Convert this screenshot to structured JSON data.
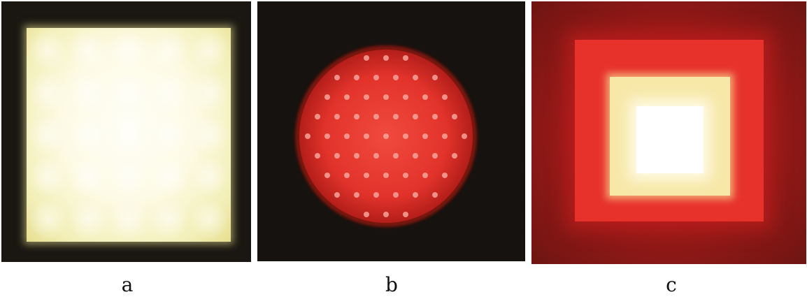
{
  "panels": [
    {
      "caption": "a",
      "description_color": "#fdfbe6"
    },
    {
      "caption": "b",
      "description_color": "#e8362e"
    },
    {
      "caption": "c",
      "description_color": "#e7322c"
    }
  ],
  "colors": {
    "background": "#ffffff",
    "dark_surround": "#16120f",
    "pale_yellow": "#f3efb8",
    "red": "#e7322c",
    "deep_red": "#6e1512",
    "white_core": "#ffffff"
  }
}
